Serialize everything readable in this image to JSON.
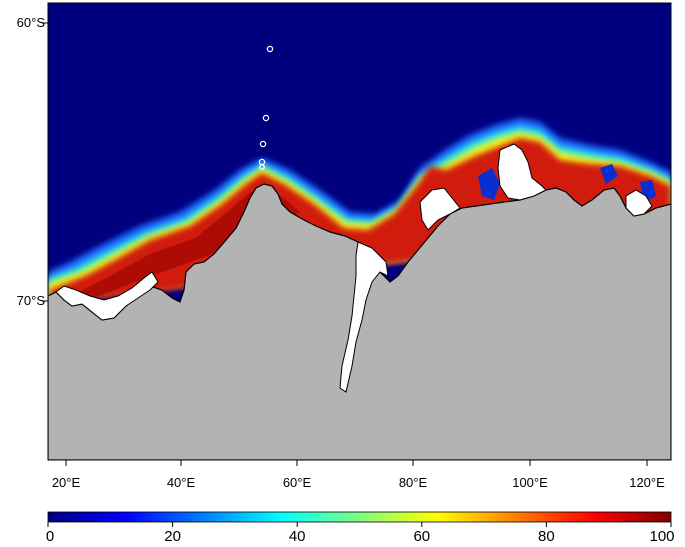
{
  "map": {
    "lat_labels": [
      "60°S",
      "70°S"
    ],
    "lon_labels": [
      "20°E",
      "40°E",
      "60°E",
      "80°E",
      "100°E",
      "120°E"
    ],
    "colors": {
      "ocean": "#00007f",
      "land": "#b3b3b3",
      "ice_shelf": "#ffffff",
      "coast": "#000000"
    },
    "stations_marker": "circle"
  },
  "colorbar": {
    "labels": [
      "0",
      "20",
      "40",
      "60",
      "80",
      "100"
    ],
    "colormap": "jet"
  }
}
